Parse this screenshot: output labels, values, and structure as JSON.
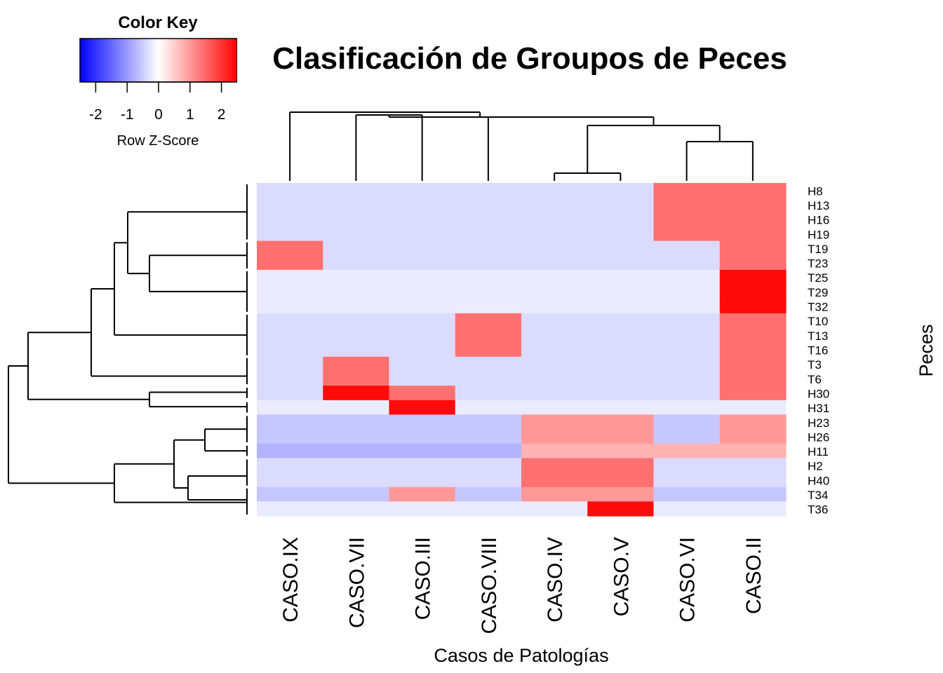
{
  "chart_data": {
    "type": "heatmap",
    "title": "Clasificación de Groupos de Peces",
    "xlabel": "Casos de Patologías",
    "ylabel": "Peces",
    "columns": [
      "CASO.IX",
      "CASO.VII",
      "CASO.III",
      "CASO.VIII",
      "CASO.IV",
      "CASO.V",
      "CASO.VI",
      "CASO.II"
    ],
    "rows": [
      "H8",
      "H13",
      "H16",
      "H19",
      "T19",
      "T23",
      "T25",
      "T29",
      "T32",
      "T10",
      "T13",
      "T16",
      "T3",
      "T6",
      "H30",
      "H31",
      "H23",
      "H26",
      "H11",
      "H2",
      "H40",
      "T34",
      "T36"
    ],
    "values": [
      [
        -0.35,
        -0.35,
        -0.35,
        -0.35,
        -0.35,
        -0.35,
        1.4,
        1.4
      ],
      [
        -0.35,
        -0.35,
        -0.35,
        -0.35,
        -0.35,
        -0.35,
        1.4,
        1.4
      ],
      [
        -0.35,
        -0.35,
        -0.35,
        -0.35,
        -0.35,
        -0.35,
        1.4,
        1.4
      ],
      [
        -0.35,
        -0.35,
        -0.35,
        -0.35,
        -0.35,
        -0.35,
        1.4,
        1.4
      ],
      [
        1.4,
        -0.35,
        -0.35,
        -0.35,
        -0.35,
        -0.35,
        -0.35,
        1.4
      ],
      [
        1.4,
        -0.35,
        -0.35,
        -0.35,
        -0.35,
        -0.35,
        -0.35,
        1.4
      ],
      [
        -0.2,
        -0.2,
        -0.2,
        -0.2,
        -0.2,
        -0.2,
        -0.2,
        2.4
      ],
      [
        -0.2,
        -0.2,
        -0.2,
        -0.2,
        -0.2,
        -0.2,
        -0.2,
        2.4
      ],
      [
        -0.2,
        -0.2,
        -0.2,
        -0.2,
        -0.2,
        -0.2,
        -0.2,
        2.4
      ],
      [
        -0.35,
        -0.35,
        -0.35,
        1.4,
        -0.35,
        -0.35,
        -0.35,
        1.4
      ],
      [
        -0.35,
        -0.35,
        -0.35,
        1.4,
        -0.35,
        -0.35,
        -0.35,
        1.4
      ],
      [
        -0.35,
        -0.35,
        -0.35,
        1.4,
        -0.35,
        -0.35,
        -0.35,
        1.4
      ],
      [
        -0.35,
        1.4,
        -0.35,
        -0.35,
        -0.35,
        -0.35,
        -0.35,
        1.4
      ],
      [
        -0.35,
        1.4,
        -0.35,
        -0.35,
        -0.35,
        -0.35,
        -0.35,
        1.4
      ],
      [
        -0.35,
        2.4,
        1.4,
        -0.35,
        -0.35,
        -0.35,
        -0.35,
        1.4
      ],
      [
        -0.2,
        -0.2,
        2.4,
        -0.2,
        -0.2,
        -0.2,
        -0.2,
        -0.2
      ],
      [
        -0.55,
        -0.55,
        -0.55,
        -0.55,
        1.0,
        1.0,
        -0.55,
        1.0
      ],
      [
        -0.55,
        -0.55,
        -0.55,
        -0.55,
        1.0,
        1.0,
        -0.55,
        1.0
      ],
      [
        -0.75,
        -0.75,
        -0.75,
        -0.75,
        0.75,
        0.75,
        0.75,
        0.75
      ],
      [
        -0.35,
        -0.35,
        -0.35,
        -0.35,
        1.4,
        1.4,
        -0.35,
        -0.35
      ],
      [
        -0.35,
        -0.35,
        -0.35,
        -0.35,
        1.4,
        1.4,
        -0.35,
        -0.35
      ],
      [
        -0.55,
        -0.55,
        1.0,
        -0.55,
        1.0,
        1.0,
        -0.55,
        -0.55
      ],
      [
        -0.2,
        -0.2,
        -0.2,
        -0.2,
        -0.2,
        2.4,
        -0.2,
        -0.2
      ]
    ],
    "color_key": {
      "title": "Color Key",
      "label": "Row Z-Score",
      "range": [
        -2.5,
        2.5
      ],
      "ticks": [
        -2,
        -1,
        0,
        1,
        2
      ],
      "colors": [
        "#0000ff",
        "#ffffff",
        "#ff0000"
      ]
    },
    "grid": false
  }
}
